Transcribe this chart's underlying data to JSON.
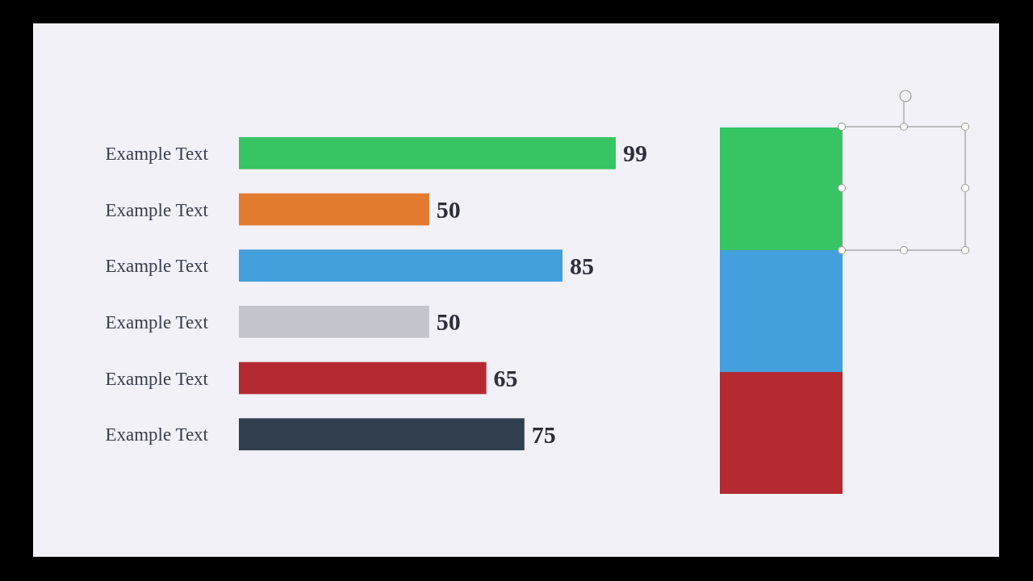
{
  "chart_data": {
    "type": "bar",
    "orientation": "horizontal",
    "categories": [
      "Example Text",
      "Example Text",
      "Example Text",
      "Example Text",
      "Example Text",
      "Example Text"
    ],
    "values": [
      99,
      50,
      85,
      50,
      65,
      75
    ],
    "colors": [
      "#37c463",
      "#e27b2e",
      "#43a0dc",
      "#c4c5cc",
      "#b52a32",
      "#323f4f"
    ],
    "data_labels": true
  }
}
